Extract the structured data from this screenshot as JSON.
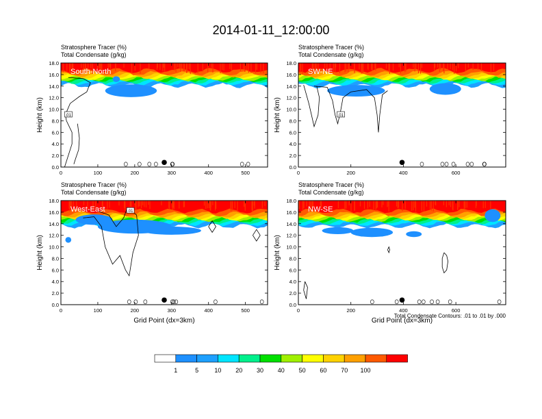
{
  "figure_title": "2014-01-11_12:00:00",
  "footnote": "Total Condensate Contours: .01 to .01 by .000",
  "colorbar": {
    "labels": [
      "1",
      "5",
      "10",
      "20",
      "30",
      "40",
      "50",
      "60",
      "70",
      "100"
    ],
    "colors": [
      "#ffffff",
      "#1e90ff",
      "#1ea0ff",
      "#00e5ff",
      "#00f08c",
      "#00e000",
      "#a0f000",
      "#ffff00",
      "#ffd200",
      "#ffa000",
      "#ff5a00",
      "#ff0000"
    ]
  },
  "chart_data": [
    {
      "type": "heatmap",
      "panel_label": "South-North",
      "title_lines": [
        "Stratosphere Tracer   (%)",
        "Total Condensate   (g/kg)"
      ],
      "xlabel": "",
      "ylabel": "Height (km)",
      "xlim": [
        0,
        560
      ],
      "ylim": [
        0,
        18
      ],
      "xticks": [
        "0",
        "100",
        "200",
        "300",
        "400",
        "500"
      ],
      "yticks": [
        "0.0",
        "2.0",
        "4.0",
        "6.0",
        "8.0",
        "10.0",
        "12.0",
        "14.0",
        "16.0",
        "18.0"
      ],
      "tracer_base_km": 14.5,
      "contour_label": ".01",
      "marker_x": 280
    },
    {
      "type": "heatmap",
      "panel_label": "SW-NE",
      "title_lines": [
        "Stratosphere Tracer   (%)",
        "Total Condensate   (g/kg)"
      ],
      "xlabel": "",
      "ylabel": "Height (km)",
      "xlim": [
        0,
        790
      ],
      "ylim": [
        0,
        18
      ],
      "xticks": [
        "0",
        "200",
        "400",
        "600"
      ],
      "yticks": [
        "0.0",
        "2.0",
        "4.0",
        "6.0",
        "8.0",
        "10.0",
        "12.0",
        "14.0",
        "16.0",
        "18.0"
      ],
      "tracer_base_km": 14.5,
      "contour_label": ".01",
      "marker_x": 395
    },
    {
      "type": "heatmap",
      "panel_label": "West-East",
      "title_lines": [
        "Stratosphere Tracer   (%)",
        "Total Condensate   (g/kg)"
      ],
      "xlabel": "Grid Point (dx=3km)",
      "ylabel": "Height (km)",
      "xlim": [
        0,
        560
      ],
      "ylim": [
        0,
        18
      ],
      "xticks": [
        "0",
        "100",
        "200",
        "300",
        "400",
        "500"
      ],
      "yticks": [
        "0.0",
        "2.0",
        "4.0",
        "6.0",
        "8.0",
        "10.0",
        "12.0",
        "14.0",
        "16.0",
        "18.0"
      ],
      "tracer_base_km": 14.0,
      "contour_label": ".01",
      "marker_x": 280
    },
    {
      "type": "heatmap",
      "panel_label": "NW-SE",
      "title_lines": [
        "Stratosphere Tracer   (%)",
        "Total Condensate   (g/kg)"
      ],
      "xlabel": "Grid Point (dx=3km)",
      "ylabel": "Height (km)",
      "xlim": [
        0,
        790
      ],
      "ylim": [
        0,
        18
      ],
      "xticks": [
        "0",
        "200",
        "400",
        "600"
      ],
      "yticks": [
        "0.0",
        "2.0",
        "4.0",
        "6.0",
        "8.0",
        "10.0",
        "12.0",
        "14.0",
        "16.0",
        "18.0"
      ],
      "tracer_base_km": 14.0,
      "contour_label": ".01",
      "marker_x": 395
    }
  ]
}
